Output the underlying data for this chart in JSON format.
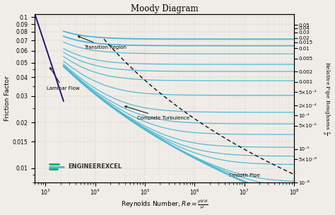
{
  "title": "Moody Diagram",
  "xlabel": "Reynolds Number, $Re = \\frac{\\rho V d}{\\mu}$",
  "ylabel": "Friction Factor",
  "ylabel_right": "Relative Pipe Roughness $\\frac{\\varepsilon}{d}$",
  "Re_min": 600,
  "Re_max": 100000000.0,
  "f_min": 0.008,
  "f_max": 0.105,
  "relative_roughness": [
    0.05,
    0.04,
    0.03,
    0.02,
    0.015,
    0.01,
    0.005,
    0.002,
    0.001,
    0.0005,
    0.0002,
    0.0001,
    5e-05,
    1e-05,
    5e-06,
    1e-06
  ],
  "right_axis_ticks": [
    0.05,
    0.04,
    0.03,
    0.02,
    0.015,
    0.01,
    0.005,
    0.002,
    0.001,
    0.0005,
    0.0002,
    0.0001,
    5e-05,
    1e-05,
    5e-06,
    1e-06
  ],
  "right_axis_labels": [
    "0.05",
    "0.04",
    "0.03",
    "0.02",
    "0.015",
    "0.01",
    "0.005",
    "0.002",
    "0.001",
    "5×10⁻⁴",
    "2×10⁻⁴",
    "10⁻⁴",
    "5×10⁻⁵",
    "10⁻⁵",
    "5×10⁻⁶",
    "10⁻⁶"
  ],
  "yticks": [
    0.01,
    0.015,
    0.02,
    0.03,
    0.04,
    0.05,
    0.06,
    0.07,
    0.08,
    0.09,
    0.1
  ],
  "ytick_labels": [
    "0.01",
    "0.015",
    "0.02",
    "0.03",
    "0.04",
    "0.05",
    "0.06",
    "0.07",
    "0.08",
    "0.09",
    "0.1"
  ],
  "line_color": "#4ab8d5",
  "laminar_color": "#1a1a6e",
  "dashed_color": "#111111",
  "background_color": "#f0ede8",
  "grid_color_major": "#aaaaaa",
  "grid_color_minor": "#cccccc",
  "logo_text": "ENGINEEREXCEL",
  "logo_color": "#333333",
  "logo_line1": "#00aa66",
  "logo_line2": "#4ab8d5",
  "annotation_transition": "Transition Region",
  "annotation_laminar": "Laminar Flow",
  "annotation_turbulence": "Complete Turbulence",
  "annotation_smooth": "Smooth Pipe"
}
